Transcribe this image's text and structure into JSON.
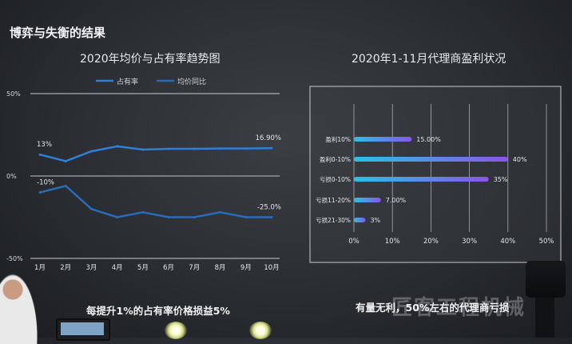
{
  "slide": {
    "title": "博弈与失衡的结果",
    "line_caption": "每提升1%的占有率价格损益5%",
    "bar_caption": "有量无利，50%左右的代理商亏损",
    "watermark": "匠客工程机械"
  },
  "colors": {
    "line_share": "#2f7fd8",
    "line_price": "#2a6bb8",
    "bar_start": "#29c2e6",
    "bar_end": "#8a55e8"
  },
  "chart_data": [
    {
      "type": "line",
      "title": "2020年均价与占有率趋势图",
      "legend": [
        "占有率",
        "均价同比"
      ],
      "legend_position": "top",
      "categories": [
        "1月",
        "2月",
        "3月",
        "4月",
        "5月",
        "6月",
        "7月",
        "8月",
        "9月",
        "10月"
      ],
      "y_ticks": [
        "50%",
        "0%",
        "-50%"
      ],
      "ylim": [
        -50,
        50
      ],
      "grid": false,
      "series": [
        {
          "name": "占有率",
          "values": [
            13,
            9,
            15,
            18,
            16,
            16.5,
            16.5,
            16.7,
            16.7,
            16.9
          ]
        },
        {
          "name": "均价同比",
          "values": [
            -10,
            -6,
            -20,
            -25,
            -22,
            -25,
            -25,
            -22,
            -25,
            -25
          ]
        }
      ],
      "data_labels": [
        {
          "series": 0,
          "index": 0,
          "text": "13%"
        },
        {
          "series": 0,
          "index": 9,
          "text": "16.90%"
        },
        {
          "series": 1,
          "index": 0,
          "text": "-10%"
        },
        {
          "series": 1,
          "index": 9,
          "text": "-25.0%"
        }
      ]
    },
    {
      "type": "bar",
      "orientation": "horizontal",
      "title": "2020年1-11月代理商盈利状况",
      "categories": [
        "盈利10%",
        "盈利0-10%",
        "亏损0-10%",
        "亏损11-20%",
        "亏损21-30%"
      ],
      "values": [
        15,
        40,
        35,
        7,
        3
      ],
      "labels": [
        "15.00%",
        "40%",
        "35%",
        "7.00%",
        "3%"
      ],
      "x_ticks": [
        "0%",
        "10%",
        "20%",
        "30%",
        "40%",
        "50%"
      ],
      "xlim": [
        0,
        50
      ],
      "grid": true
    }
  ]
}
